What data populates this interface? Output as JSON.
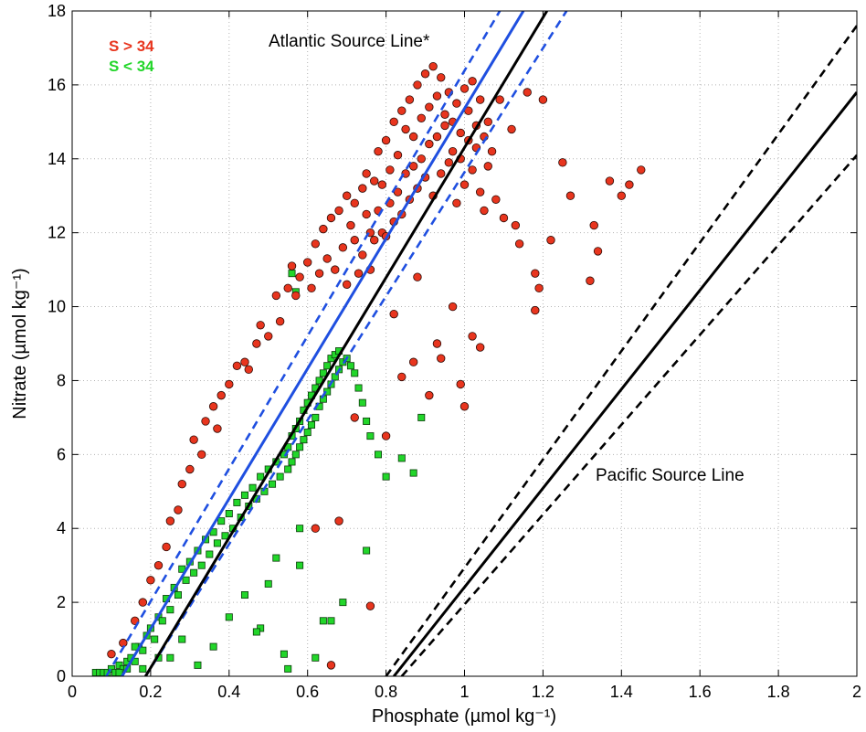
{
  "chart_data": {
    "type": "scatter",
    "xlabel": "Phosphate (µmol kg⁻¹)",
    "ylabel": "Nitrate (µmol kg⁻¹)",
    "xlim": [
      0,
      2
    ],
    "ylim": [
      0,
      18
    ],
    "grid": true,
    "legend_position": "top-left",
    "x_ticks": [
      "0",
      "0.2",
      "0.4",
      "0.6",
      "0.8",
      "1",
      "1.2",
      "1.4",
      "1.6",
      "1.8",
      "2"
    ],
    "y_ticks": [
      "0",
      "2",
      "4",
      "6",
      "8",
      "10",
      "12",
      "14",
      "16",
      "18"
    ],
    "series": [
      {
        "name": "S > 34",
        "marker": "circle",
        "color": "#e8351e",
        "x": [
          0.1,
          0.13,
          0.16,
          0.18,
          0.2,
          0.22,
          0.24,
          0.25,
          0.27,
          0.28,
          0.3,
          0.31,
          0.33,
          0.34,
          0.36,
          0.37,
          0.38,
          0.4,
          0.42,
          0.44,
          0.45,
          0.47,
          0.48,
          0.5,
          0.52,
          0.53,
          0.55,
          0.56,
          0.57,
          0.58,
          0.6,
          0.61,
          0.62,
          0.63,
          0.64,
          0.65,
          0.66,
          0.67,
          0.68,
          0.69,
          0.7,
          0.7,
          0.71,
          0.72,
          0.72,
          0.73,
          0.74,
          0.74,
          0.75,
          0.75,
          0.76,
          0.76,
          0.77,
          0.77,
          0.78,
          0.78,
          0.79,
          0.79,
          0.8,
          0.8,
          0.81,
          0.81,
          0.82,
          0.82,
          0.83,
          0.83,
          0.84,
          0.84,
          0.85,
          0.85,
          0.86,
          0.86,
          0.87,
          0.87,
          0.88,
          0.88,
          0.89,
          0.89,
          0.9,
          0.9,
          0.91,
          0.91,
          0.92,
          0.92,
          0.93,
          0.93,
          0.94,
          0.94,
          0.95,
          0.95,
          0.96,
          0.96,
          0.97,
          0.97,
          0.98,
          0.98,
          0.99,
          0.99,
          1.0,
          1.0,
          1.01,
          1.01,
          1.02,
          1.02,
          1.03,
          1.03,
          1.04,
          1.04,
          1.05,
          1.05,
          1.06,
          1.06,
          1.07,
          1.08,
          1.09,
          1.1,
          1.12,
          1.13,
          1.14,
          1.16,
          1.18,
          1.2,
          1.22,
          1.25,
          1.27,
          1.32,
          1.33,
          1.34,
          1.37,
          1.4,
          1.42,
          1.45,
          0.66,
          0.76,
          0.94,
          0.99,
          1.0,
          1.04,
          1.19,
          1.18,
          0.68,
          0.62,
          0.87,
          0.91,
          0.72,
          0.8,
          0.84,
          0.93,
          0.97,
          1.02,
          0.88,
          0.82
        ],
        "y": [
          0.6,
          0.9,
          1.5,
          2.0,
          2.6,
          3.0,
          3.5,
          4.2,
          4.5,
          5.2,
          5.6,
          6.4,
          6.0,
          6.9,
          7.3,
          6.7,
          7.6,
          7.9,
          8.4,
          8.5,
          8.3,
          9.0,
          9.5,
          9.2,
          10.3,
          9.6,
          10.5,
          11.1,
          10.3,
          10.8,
          11.2,
          10.5,
          11.7,
          10.9,
          12.1,
          11.3,
          12.4,
          11.0,
          12.6,
          11.6,
          13.0,
          10.6,
          12.2,
          11.8,
          12.8,
          10.9,
          13.2,
          11.4,
          12.5,
          13.6,
          11.0,
          12.0,
          13.4,
          11.8,
          12.6,
          14.2,
          12.0,
          13.3,
          11.9,
          14.5,
          12.8,
          13.7,
          12.3,
          15.0,
          13.1,
          14.1,
          12.5,
          15.3,
          13.6,
          14.8,
          12.9,
          15.6,
          13.8,
          14.6,
          13.2,
          16.0,
          14.0,
          15.1,
          13.5,
          16.3,
          14.4,
          15.4,
          13.0,
          16.5,
          14.6,
          15.7,
          13.6,
          16.2,
          14.9,
          15.2,
          13.9,
          15.8,
          14.2,
          15.0,
          12.8,
          15.5,
          14.0,
          14.7,
          13.3,
          15.9,
          14.5,
          15.3,
          13.7,
          16.1,
          14.3,
          14.9,
          13.1,
          15.6,
          14.6,
          12.6,
          15.0,
          13.8,
          14.2,
          12.9,
          15.6,
          12.4,
          14.8,
          12.2,
          11.7,
          15.8,
          10.9,
          15.6,
          11.8,
          13.9,
          13.0,
          10.7,
          12.2,
          11.5,
          13.4,
          13.0,
          13.3,
          13.7,
          0.3,
          1.9,
          8.6,
          7.9,
          7.3,
          8.9,
          10.5,
          9.9,
          4.2,
          4.0,
          8.5,
          7.6,
          7.0,
          6.5,
          8.1,
          9.0,
          10.0,
          9.2,
          10.8,
          9.8
        ]
      },
      {
        "name": "S < 34",
        "marker": "square",
        "color": "#22d62a",
        "x": [
          0.06,
          0.07,
          0.08,
          0.09,
          0.1,
          0.11,
          0.12,
          0.13,
          0.14,
          0.15,
          0.16,
          0.17,
          0.18,
          0.19,
          0.2,
          0.21,
          0.22,
          0.23,
          0.24,
          0.25,
          0.26,
          0.27,
          0.28,
          0.29,
          0.3,
          0.31,
          0.32,
          0.33,
          0.34,
          0.35,
          0.36,
          0.37,
          0.38,
          0.39,
          0.4,
          0.41,
          0.42,
          0.43,
          0.44,
          0.45,
          0.46,
          0.47,
          0.48,
          0.49,
          0.5,
          0.51,
          0.52,
          0.53,
          0.54,
          0.55,
          0.55,
          0.56,
          0.56,
          0.57,
          0.57,
          0.58,
          0.58,
          0.59,
          0.59,
          0.6,
          0.6,
          0.61,
          0.61,
          0.62,
          0.62,
          0.63,
          0.63,
          0.64,
          0.64,
          0.65,
          0.65,
          0.66,
          0.66,
          0.67,
          0.67,
          0.68,
          0.68,
          0.69,
          0.7,
          0.71,
          0.72,
          0.73,
          0.74,
          0.75,
          0.76,
          0.78,
          0.8,
          0.84,
          0.87,
          0.89,
          0.56,
          0.57,
          0.48,
          0.5,
          0.52,
          0.55,
          0.58,
          0.62,
          0.64,
          0.58,
          0.25,
          0.28,
          0.32,
          0.36,
          0.4,
          0.44,
          0.18,
          0.22,
          0.12,
          0.14,
          0.16,
          0.66,
          0.69,
          0.54,
          0.75,
          0.47
        ],
        "y": [
          0.1,
          0.1,
          0.1,
          0.1,
          0.2,
          0.1,
          0.3,
          0.2,
          0.4,
          0.5,
          0.4,
          0.8,
          0.7,
          1.1,
          1.3,
          1.0,
          1.6,
          1.5,
          2.1,
          1.8,
          2.4,
          2.2,
          2.9,
          2.6,
          3.1,
          2.8,
          3.4,
          3.0,
          3.7,
          3.3,
          3.9,
          3.6,
          4.2,
          3.8,
          4.4,
          4.0,
          4.7,
          4.3,
          4.9,
          4.6,
          5.1,
          4.8,
          5.4,
          5.0,
          5.6,
          5.2,
          5.8,
          5.4,
          6.0,
          5.6,
          6.2,
          5.8,
          6.5,
          6.0,
          6.7,
          6.2,
          6.9,
          6.4,
          7.2,
          6.6,
          7.4,
          6.8,
          7.6,
          7.0,
          7.8,
          7.3,
          8.0,
          7.5,
          8.2,
          7.7,
          8.4,
          7.9,
          8.6,
          8.1,
          8.7,
          8.3,
          8.8,
          8.5,
          8.6,
          8.4,
          8.2,
          7.8,
          7.4,
          6.9,
          6.5,
          6.0,
          5.4,
          5.9,
          5.5,
          7.0,
          10.9,
          10.4,
          1.3,
          2.5,
          3.2,
          0.2,
          4.0,
          0.5,
          1.5,
          3.0,
          0.5,
          1.0,
          0.3,
          0.8,
          1.6,
          2.2,
          0.2,
          0.5,
          0.1,
          0.2,
          0.8,
          1.5,
          2.0,
          0.6,
          3.4,
          1.2
        ]
      }
    ],
    "lines": [
      {
        "name": "Atlantic central",
        "style": "solid",
        "color": "#1f4fe0",
        "x": [
          0.127,
          1.15
        ],
        "y": [
          0,
          18
        ]
      },
      {
        "name": "Atlantic upper",
        "style": "dashed",
        "color": "#1f4fe0",
        "x": [
          0.087,
          1.09
        ],
        "y": [
          0,
          18
        ]
      },
      {
        "name": "Atlantic lower",
        "style": "dashed",
        "color": "#1f4fe0",
        "x": [
          0.187,
          1.26
        ],
        "y": [
          0,
          18
        ]
      },
      {
        "name": "Atlantic black",
        "style": "solid",
        "color": "#000000",
        "x": [
          0.187,
          1.21
        ],
        "y": [
          0,
          18
        ]
      },
      {
        "name": "Pacific central",
        "style": "solid",
        "color": "#000000",
        "x": [
          0.82,
          2.0
        ],
        "y": [
          0,
          15.8
        ]
      },
      {
        "name": "Pacific upper",
        "style": "dashed",
        "color": "#000000",
        "x": [
          0.8,
          2.0
        ],
        "y": [
          0,
          17.6
        ]
      },
      {
        "name": "Pacific lower",
        "style": "dashed",
        "color": "#000000",
        "x": [
          0.84,
          2.0
        ],
        "y": [
          0,
          14.1
        ]
      }
    ],
    "annotations": [
      {
        "text": "Atlantic Source Line*",
        "x": 0.5,
        "y": 17.15
      },
      {
        "text": "Pacific Source Line",
        "x": 1.35,
        "y": 5.3
      }
    ],
    "legend": [
      {
        "label": "S > 34",
        "color": "#e8351e"
      },
      {
        "label": "S < 34",
        "color": "#22d62a"
      }
    ]
  }
}
